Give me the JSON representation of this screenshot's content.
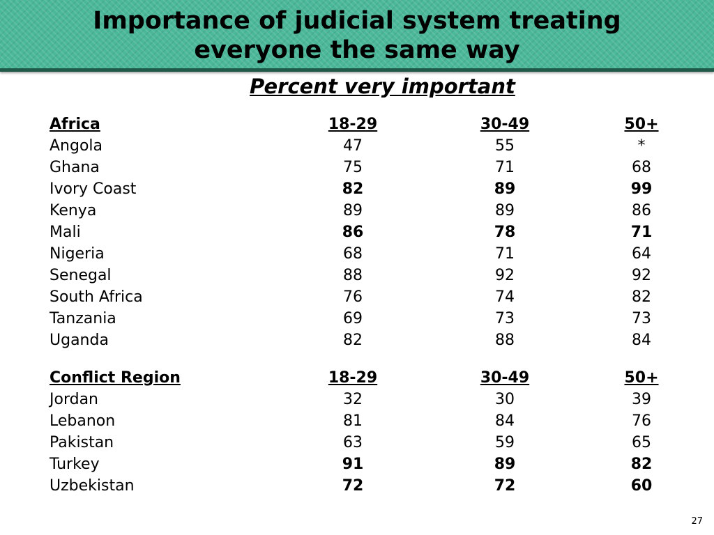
{
  "title": "Importance of judicial system treating everyone the same way",
  "subtitle": "Percent very important",
  "columns": [
    "18-29",
    "30-49",
    "50+"
  ],
  "sections": [
    {
      "name": "Africa",
      "rows": [
        {
          "label": "Angola",
          "v1": "47",
          "v2": "55",
          "v3": "*",
          "bold": false
        },
        {
          "label": "Ghana",
          "v1": "75",
          "v2": "71",
          "v3": "68",
          "bold": false
        },
        {
          "label": "Ivory Coast",
          "v1": "82",
          "v2": "89",
          "v3": "99",
          "bold": true
        },
        {
          "label": "Kenya",
          "v1": "89",
          "v2": "89",
          "v3": "86",
          "bold": false
        },
        {
          "label": "Mali",
          "v1": "86",
          "v2": "78",
          "v3": "71",
          "bold": true
        },
        {
          "label": "Nigeria",
          "v1": "68",
          "v2": "71",
          "v3": "64",
          "bold": false
        },
        {
          "label": "Senegal",
          "v1": "88",
          "v2": "92",
          "v3": "92",
          "bold": false
        },
        {
          "label": "South Africa",
          "v1": "76",
          "v2": "74",
          "v3": "82",
          "bold": false
        },
        {
          "label": "Tanzania",
          "v1": "69",
          "v2": "73",
          "v3": "73",
          "bold": false
        },
        {
          "label": "Uganda",
          "v1": "82",
          "v2": "88",
          "v3": "84",
          "bold": false
        }
      ]
    },
    {
      "name": "Conflict Region",
      "rows": [
        {
          "label": "Jordan",
          "v1": "32",
          "v2": "30",
          "v3": "39",
          "bold": false
        },
        {
          "label": "Lebanon",
          "v1": "81",
          "v2": "84",
          "v3": "76",
          "bold": false
        },
        {
          "label": "Pakistan",
          "v1": "63",
          "v2": "59",
          "v3": "65",
          "bold": false
        },
        {
          "label": "Turkey",
          "v1": "91",
          "v2": "89",
          "v3": "82",
          "bold": true
        },
        {
          "label": "Uzbekistan",
          "v1": "72",
          "v2": "72",
          "v3": "60",
          "bold": true
        }
      ]
    }
  ],
  "page_number": "27",
  "colors": {
    "title_band": "#4bb89a",
    "title_band_border": "#1f5a48"
  }
}
